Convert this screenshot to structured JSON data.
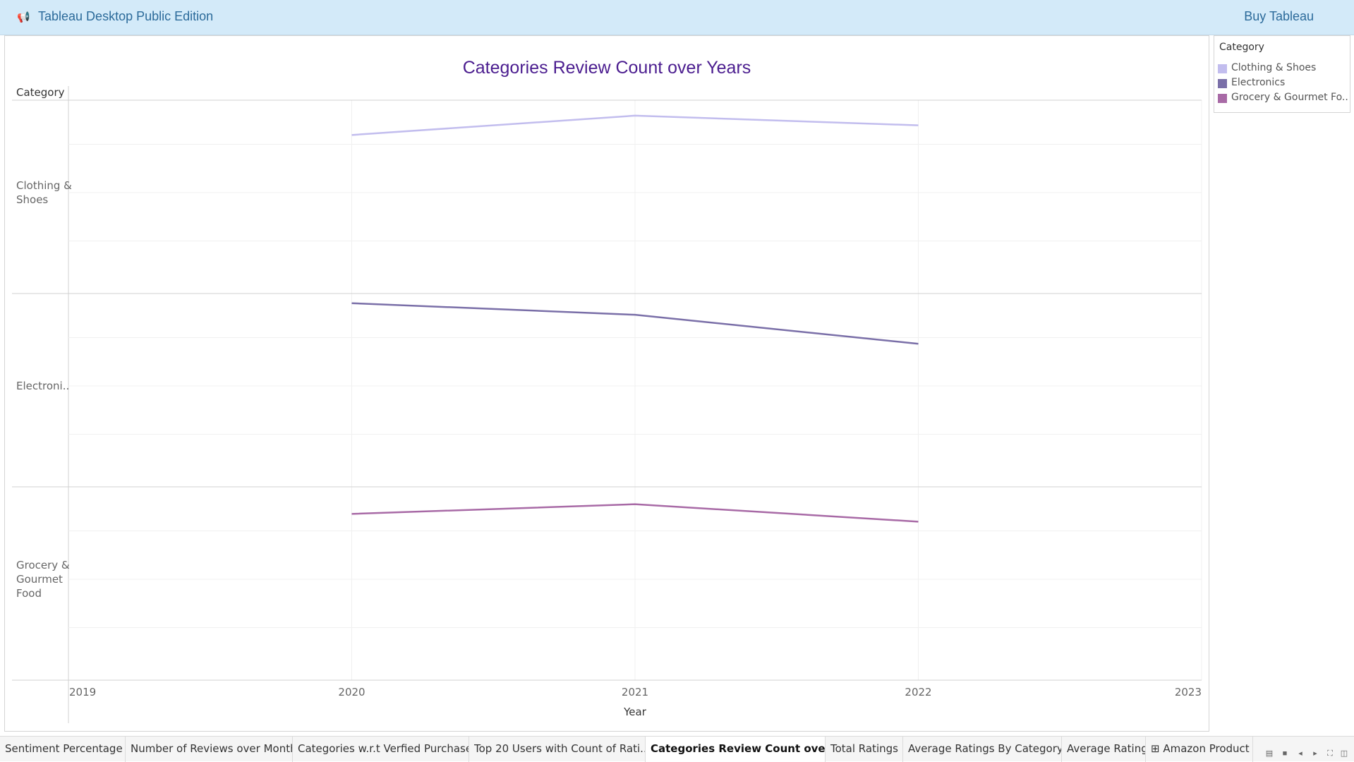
{
  "topbar": {
    "app_icon": "megaphone-icon",
    "app_title": "Tableau Desktop Public Edition",
    "buy_label": "Buy Tableau"
  },
  "legend": {
    "title": "Category",
    "items": [
      {
        "label": "Clothing & Shoes",
        "color": "#c2bdee"
      },
      {
        "label": "Electronics",
        "color": "#7a6fa8"
      },
      {
        "label": "Grocery & Gourmet Fo..",
        "color": "#a86aa6"
      }
    ]
  },
  "chart_data": {
    "type": "line",
    "title": "Categories Review Count over Years",
    "xlabel": "Year",
    "row_header": "Category",
    "x_ticks": [
      "2019",
      "2020",
      "2021",
      "2022",
      "2023"
    ],
    "xlim": [
      2019,
      2023
    ],
    "grid": true,
    "legend_position": "top-right",
    "rows": [
      {
        "category": "Clothing & Shoes",
        "label_lines": [
          "Clothing &",
          "Shoes"
        ],
        "color": "#c2bdee",
        "x": [
          2020,
          2021,
          2022
        ],
        "y": [
          0.82,
          0.92,
          0.87
        ]
      },
      {
        "category": "Electronics",
        "label_lines": [
          "Electroni.."
        ],
        "color": "#7a6fa8",
        "x": [
          2020,
          2021,
          2022
        ],
        "y": [
          0.95,
          0.89,
          0.74
        ]
      },
      {
        "category": "Grocery & Gourmet Food",
        "label_lines": [
          "Grocery &",
          "Gourmet",
          "Food"
        ],
        "color": "#a86aa6",
        "x": [
          2020,
          2021,
          2022
        ],
        "y": [
          0.86,
          0.91,
          0.82
        ]
      }
    ]
  },
  "tabs": [
    {
      "label": "Sentiment Percentage",
      "active": false
    },
    {
      "label": "Number of Reviews over Month",
      "active": false
    },
    {
      "label": "Categories w.r.t Verfied Purchase",
      "active": false
    },
    {
      "label": "Top 20 Users with Count of Rati...",
      "active": false
    },
    {
      "label": "Categories Review Count over ...",
      "active": true
    },
    {
      "label": "Total Ratings",
      "active": false
    },
    {
      "label": "Average Ratings By Category",
      "active": false
    },
    {
      "label": "Average Rating",
      "active": false
    },
    {
      "label": "⊞ Amazon Product R",
      "active": false
    }
  ],
  "tab_controls": [
    "list-view-icon",
    "grid-view-icon",
    "prev-sheet-icon",
    "next-sheet-icon",
    "fullscreen-icon",
    "presentation-icon"
  ]
}
